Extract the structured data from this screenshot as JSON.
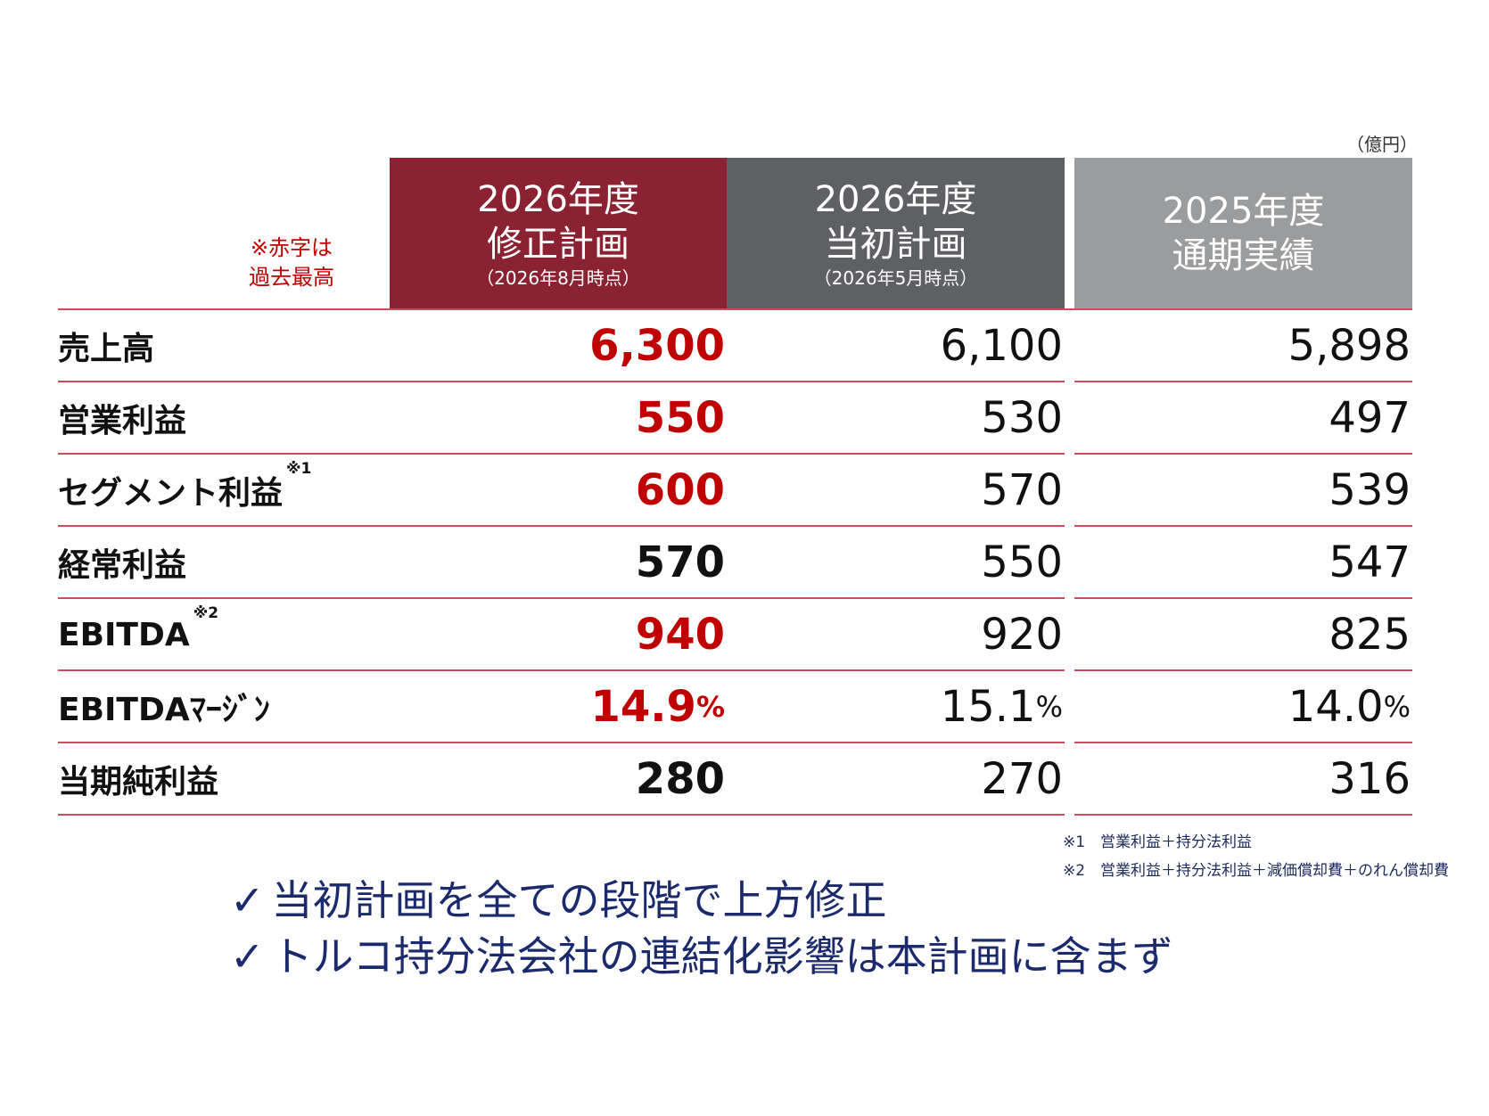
{
  "unit": "（億円）",
  "note": {
    "line1": "※赤字は",
    "line2": "過去最高"
  },
  "columns": [
    {
      "line1": "2026年度",
      "line2": "修正計画",
      "sub": "（2026年8月時点）",
      "color": "#8a2232"
    },
    {
      "line1": "2026年度",
      "line2": "当初計画",
      "sub": "（2026年5月時点）",
      "color": "#5f6064"
    },
    {
      "line1": "2025年度",
      "line2": "通期実績",
      "sub": "",
      "color": "#9b9c9e"
    }
  ],
  "rows": [
    {
      "label": "売上高",
      "sup": "",
      "revised": "6,300",
      "initial": "6,100",
      "actual": "5,898",
      "revised_record": true,
      "pct": false
    },
    {
      "label": "営業利益",
      "sup": "",
      "revised": "550",
      "initial": "530",
      "actual": "497",
      "revised_record": true,
      "pct": false
    },
    {
      "label": "セグメント利益",
      "sup": "※1",
      "revised": "600",
      "initial": "570",
      "actual": "539",
      "revised_record": true,
      "pct": false
    },
    {
      "label": "経常利益",
      "sup": "",
      "revised": "570",
      "initial": "550",
      "actual": "547",
      "revised_record": false,
      "pct": false
    },
    {
      "label": "EBITDA",
      "sup": "※2",
      "revised": "940",
      "initial": "920",
      "actual": "825",
      "revised_record": true,
      "pct": false
    },
    {
      "label": "EBITDAﾏｰｼﾞﾝ",
      "sup": "",
      "revised": "14.9",
      "initial": "15.1",
      "actual": "14.0",
      "revised_record": true,
      "pct": true
    },
    {
      "label": "当期純利益",
      "sup": "",
      "revised": "280",
      "initial": "270",
      "actual": "316",
      "revised_record": false,
      "pct": false
    }
  ],
  "pct_symbol": "%",
  "footnotes": [
    "※1　営業利益＋持分法利益",
    "※2　営業利益＋持分法利益＋減価償却費＋のれん償却費"
  ],
  "bullets": [
    {
      "check": "✓",
      "text": "当初計画を全ての段階で上方修正"
    },
    {
      "check": "✓",
      "text": "トルコ持分法会社の連結化影響は本計画に含まず"
    }
  ],
  "colors": {
    "record_red": "#c00000",
    "rule_red": "#cf4a5c",
    "bullet_navy": "#1a2a6c"
  }
}
